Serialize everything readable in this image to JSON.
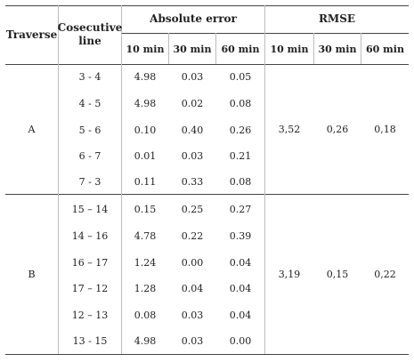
{
  "header": {
    "traverse": "Traverse",
    "line": "Cosecutive line",
    "abs_error": "Absolute error",
    "rmse": "RMSE",
    "sub": [
      "10 min",
      "30 min",
      "60 min",
      "10 min",
      "30 min",
      "60 min"
    ]
  },
  "groups": [
    {
      "traverse": "A",
      "rmse": [
        "3,52",
        "0,26",
        "0,18"
      ],
      "rows": [
        {
          "line": "3 - 4",
          "e10": "4.98",
          "e30": "0.03",
          "e60": "0.05"
        },
        {
          "line": "4 - 5",
          "e10": "4.98",
          "e30": "0.02",
          "e60": "0.08"
        },
        {
          "line": "5 - 6",
          "e10": "0.10",
          "e30": "0.40",
          "e60": "0.26"
        },
        {
          "line": "6 - 7",
          "e10": "0.01",
          "e30": "0.03",
          "e60": "0.21"
        },
        {
          "line": "7 - 3",
          "e10": "0.11",
          "e30": "0.33",
          "e60": "0.08"
        }
      ]
    },
    {
      "traverse": "B",
      "rmse": [
        "3,19",
        "0,15",
        "0,22"
      ],
      "rows": [
        {
          "line": "15 – 14",
          "e10": "0.15",
          "e30": "0.25",
          "e60": "0.27"
        },
        {
          "line": "14 – 16",
          "e10": "4.78",
          "e30": "0.22",
          "e60": "0.39"
        },
        {
          "line": "16 – 17",
          "e10": "1.24",
          "e30": "0.00",
          "e60": "0.04"
        },
        {
          "line": "17 – 12",
          "e10": "1.28",
          "e30": "0.04",
          "e60": "0.04"
        },
        {
          "line": "12 – 13",
          "e10": "0.08",
          "e30": "0.03",
          "e60": "0.04"
        },
        {
          "line": "13 - 15",
          "e10": "4.98",
          "e30": "0.03",
          "e60": "0.00"
        }
      ]
    }
  ]
}
